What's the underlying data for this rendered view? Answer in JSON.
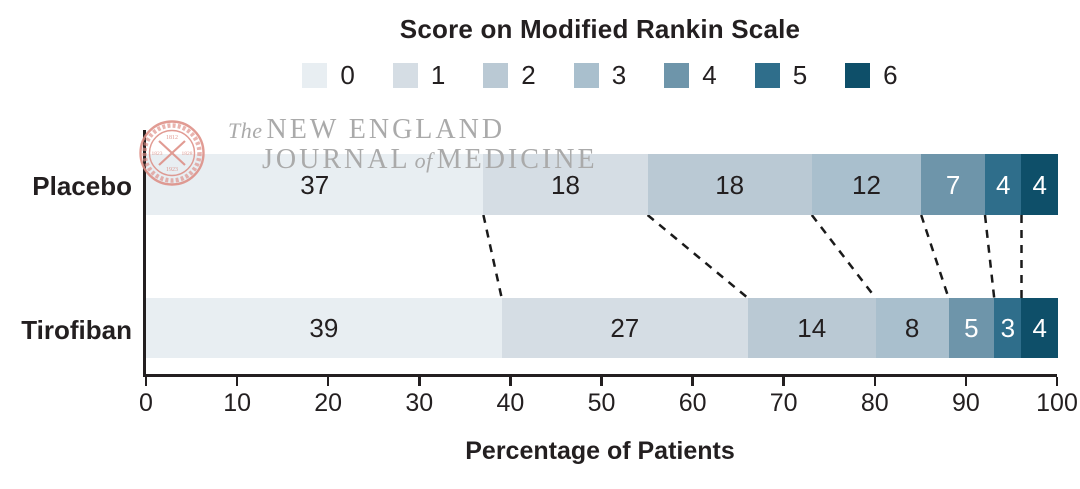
{
  "title": "Score on Modified Rankin Scale",
  "x_axis_title": "Percentage of Patients",
  "watermark": {
    "the": "The",
    "line1": "NEW ENGLAND",
    "journal": "JOURNAL",
    "of": "of",
    "medicine": "MEDICINE",
    "seal": "nejm-crossed-staffs-seal"
  },
  "row_labels": {
    "placebo": "Placebo",
    "tirofiban": "Tirofiban"
  },
  "chart_data": {
    "type": "bar",
    "subtype": "horizontal-stacked-100pct",
    "title": "Score on Modified Rankin Scale",
    "xlabel": "Percentage of Patients",
    "xlim": [
      0,
      100
    ],
    "xticks": [
      0,
      10,
      20,
      30,
      40,
      50,
      60,
      70,
      80,
      90,
      100
    ],
    "grid": false,
    "legend_position": "top",
    "categories": [
      "Placebo",
      "Tirofiban"
    ],
    "series": [
      {
        "name": "0",
        "color": "#e8eef2",
        "label_style": "dark",
        "values": [
          37,
          39
        ]
      },
      {
        "name": "1",
        "color": "#d5dde4",
        "label_style": "dark",
        "values": [
          18,
          27
        ]
      },
      {
        "name": "2",
        "color": "#bac9d4",
        "label_style": "dark",
        "values": [
          18,
          14
        ]
      },
      {
        "name": "3",
        "color": "#a9bfcd",
        "label_style": "dark",
        "values": [
          12,
          8
        ]
      },
      {
        "name": "4",
        "color": "#6e95aa",
        "label_style": "light",
        "values": [
          7,
          5
        ]
      },
      {
        "name": "5",
        "color": "#2f6e8b",
        "label_style": "light",
        "values": [
          4,
          3
        ]
      },
      {
        "name": "6",
        "color": "#0e4f69",
        "label_style": "light",
        "values": [
          4,
          4
        ]
      }
    ],
    "connectors": {
      "style": "dashed",
      "description": "dashed lines joining cumulative segment boundaries of the two bars",
      "placebo_boundaries": [
        37,
        55,
        73,
        85,
        92,
        96
      ],
      "tirofiban_boundaries": [
        39,
        66,
        80,
        88,
        93,
        96
      ]
    },
    "label_colors": {
      "dark": "#231f20",
      "light": "#ffffff"
    }
  }
}
